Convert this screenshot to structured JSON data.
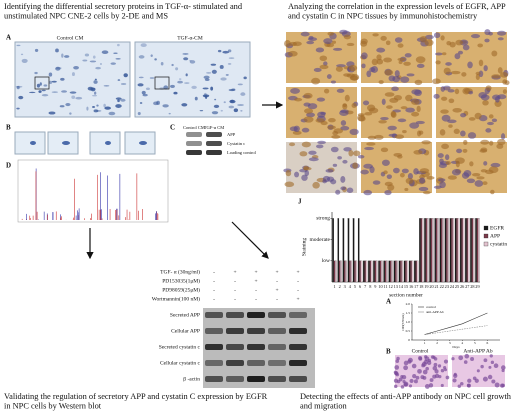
{
  "panels": {
    "ms": {
      "caption": "Identifying the differential secretory proteins in TGF-α- stimulated and unstimulated NPC CNE-2 cells by 2-DE and MS",
      "letters": [
        "A",
        "B",
        "C",
        "D"
      ],
      "gel_labels": [
        "Control CM",
        "TGF-α-CM"
      ],
      "blot_header": [
        "Control CM",
        "TGF-α CM"
      ],
      "blot_rows": [
        "APP",
        "Cystatin c",
        "Loading control"
      ]
    },
    "ihc": {
      "caption": "Analyzing the correlation in the expression levels of EGFR, APP and cystatin C in NPC tissues by immunohistochemistry",
      "letter": "J"
    },
    "western": {
      "caption": "Validating the regulation of secretory APP and cystatin C expression by EGFR in NPC cells by Western blot",
      "treatments": [
        {
          "label": "TGF- α (30ng/ml)",
          "signs": [
            "-",
            "+",
            "+",
            "+",
            "+"
          ]
        },
        {
          "label": "PD153035(1μM)",
          "signs": [
            "-",
            "-",
            "+",
            "-",
            "-"
          ]
        },
        {
          "label": "PD98059(25μM)",
          "signs": [
            "-",
            "-",
            "-",
            "+",
            "-"
          ]
        },
        {
          "label": "Wortmannin(100 nM)",
          "signs": [
            "-",
            "-",
            "-",
            "-",
            "+"
          ]
        }
      ],
      "rows": [
        "Secreted APP",
        "Cellular APP",
        "Secreted cystatin c",
        "Cellular cystatin c",
        "β -actin"
      ]
    },
    "growth": {
      "caption": "Detecting the effects of anti-APP antibody on NPC cell growth and migration",
      "letters": [
        "A",
        "B"
      ],
      "image_labels": [
        "Control",
        "Anti-APP Ab"
      ]
    }
  },
  "chart_data": [
    {
      "type": "bar",
      "y_label": "Staining",
      "x_label": "section number",
      "categories": [
        "1",
        "2",
        "3",
        "4",
        "5",
        "6",
        "7",
        "8",
        "9",
        "10",
        "11",
        "12",
        "13",
        "14",
        "15",
        "16",
        "17",
        "18",
        "19",
        "20",
        "21",
        "22",
        "23",
        "24",
        "25",
        "26",
        "27",
        "28",
        "29"
      ],
      "ylim": [
        0,
        3.3
      ],
      "yticks": [
        {
          "value": 1,
          "label": "low"
        },
        {
          "value": 2,
          "label": "moderate"
        },
        {
          "value": 3,
          "label": "strong"
        }
      ],
      "series": [
        {
          "name": "EGFR",
          "color": "#1a1a1a",
          "values": [
            3,
            3,
            3,
            3,
            3,
            3,
            1,
            1,
            1,
            1,
            1,
            1,
            1,
            1,
            1,
            1,
            1,
            3,
            3,
            3,
            3,
            3,
            3,
            3,
            3,
            3,
            3,
            3,
            3
          ]
        },
        {
          "name": "APP",
          "color": "#7a3a4a",
          "values": [
            1,
            1,
            1,
            1,
            1,
            1,
            1,
            1,
            1,
            1,
            1,
            1,
            1,
            1,
            1,
            1,
            1,
            3,
            3,
            3,
            3,
            3,
            3,
            3,
            3,
            3,
            3,
            3,
            3
          ]
        },
        {
          "name": "cystatin",
          "color": "#e3c3cf",
          "values": [
            1,
            1,
            1,
            1,
            1,
            1,
            1,
            1,
            1,
            1,
            1,
            1,
            1,
            1,
            1,
            1,
            1,
            3,
            3,
            3,
            3,
            3,
            3,
            3,
            3,
            3,
            3,
            3,
            3
          ]
        }
      ]
    },
    {
      "type": "line",
      "x_label": "Days",
      "y_label": "OD(570nm)",
      "x": [
        1,
        2,
        3,
        4,
        5,
        6
      ],
      "xlim": [
        0,
        7
      ],
      "xticks": [
        1,
        2,
        3,
        4,
        5,
        6
      ],
      "ylim": [
        0,
        2
      ],
      "yticks": [
        0,
        0.5,
        {
          "value": 1,
          "label": "1.0"
        },
        1.5,
        {
          "value": 2,
          "label": "2.0"
        }
      ],
      "series": [
        {
          "name": "control",
          "color": "#333333",
          "values": [
            0.3,
            0.5,
            0.7,
            0.9,
            1.2,
            1.5
          ]
        },
        {
          "name": "anti-APP Ab",
          "color": "#888888",
          "values": [
            0.3,
            0.4,
            0.5,
            0.6,
            0.7,
            0.8
          ]
        }
      ]
    }
  ]
}
